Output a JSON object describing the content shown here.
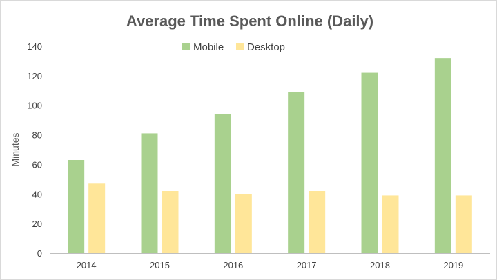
{
  "chart_data": {
    "type": "bar",
    "title": "Average Time Spent Online (Daily)",
    "xlabel": "",
    "ylabel": "Minutes",
    "categories": [
      "2014",
      "2015",
      "2016",
      "2017",
      "2018",
      "2019"
    ],
    "series": [
      {
        "name": "Mobile",
        "color": "#a9d18e",
        "values": [
          63,
          81,
          94,
          109,
          122,
          132
        ]
      },
      {
        "name": "Desktop",
        "color": "#ffe699",
        "values": [
          47,
          42,
          40,
          42,
          39,
          39
        ]
      }
    ],
    "ylim": [
      0,
      140
    ],
    "yticks": [
      "0",
      "20",
      "40",
      "60",
      "80",
      "100",
      "120",
      "140"
    ],
    "grid": false,
    "legend": "top-center",
    "colors": {
      "axis": "#bfbfbf",
      "text": "#404040",
      "title": "#595959"
    }
  }
}
